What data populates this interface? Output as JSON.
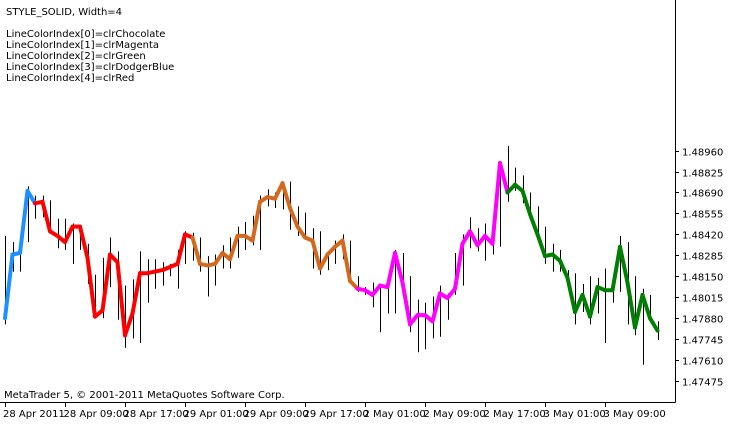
{
  "header": {
    "title": "STYLE_SOLID,  Width=4",
    "legend": [
      "LineColorIndex[0]=clrChocolate",
      "LineColorIndex[1]=clrMagenta",
      "LineColorIndex[2]=clrGreen",
      "LineColorIndex[3]=clrDodgerBlue",
      "LineColorIndex[4]=clrRed"
    ]
  },
  "footer": {
    "copyright": "MetaTrader 5, © 2001-2011 MetaQuotes Software Corp."
  },
  "colors": {
    "chocolate": "#d2691e",
    "magenta": "#ff00ff",
    "green": "#008000",
    "dodgerblue": "#1e90ff",
    "red": "#ff0000",
    "bars": "#000000",
    "background": "#ffffff"
  },
  "chart_data": {
    "type": "line",
    "title": "STYLE_SOLID,  Width=4",
    "xlabel": "",
    "ylabel": "",
    "grid": false,
    "ylim": [
      1.4734,
      1.4993
    ],
    "y_ticks": [
      "1.48960",
      "1.48825",
      "1.48690",
      "1.48555",
      "1.48420",
      "1.48285",
      "1.48150",
      "1.48015",
      "1.47880",
      "1.47745",
      "1.47610",
      "1.47475"
    ],
    "x_ticks": [
      "28 Apr 2011",
      "28 Apr 09:00",
      "28 Apr 17:00",
      "29 Apr 01:00",
      "29 Apr 09:00",
      "29 Apr 17:00",
      "2 May 01:00",
      "2 May 09:00",
      "2 May 17:00",
      "3 May 01:00",
      "3 May 09:00"
    ],
    "bars": [
      {
        "high": 1.4841,
        "low": 1.4784,
        "color": 3,
        "value": 1.4788
      },
      {
        "high": 1.4837,
        "low": 1.4818,
        "color": 3,
        "value": 1.4829
      },
      {
        "high": 1.484,
        "low": 1.4818,
        "color": 3,
        "value": 1.483
      },
      {
        "high": 1.4873,
        "low": 1.4837,
        "color": 3,
        "value": 1.487
      },
      {
        "high": 1.4867,
        "low": 1.4852,
        "color": 3,
        "value": 1.4862
      },
      {
        "high": 1.4867,
        "low": 1.4853,
        "color": 4,
        "value": 1.4863
      },
      {
        "high": 1.4864,
        "low": 1.4843,
        "color": 4,
        "value": 1.4844
      },
      {
        "high": 1.4852,
        "low": 1.4833,
        "color": 4,
        "value": 1.4841
      },
      {
        "high": 1.4852,
        "low": 1.4832,
        "color": 4,
        "value": 1.4837
      },
      {
        "high": 1.4849,
        "low": 1.4823,
        "color": 4,
        "value": 1.4847
      },
      {
        "high": 1.4846,
        "low": 1.4832,
        "color": 4,
        "value": 1.4847
      },
      {
        "high": 1.4836,
        "low": 1.481,
        "color": 4,
        "value": 1.4827
      },
      {
        "high": 1.4816,
        "low": 1.4788,
        "color": 4,
        "value": 1.4789
      },
      {
        "high": 1.4827,
        "low": 1.4788,
        "color": 4,
        "value": 1.4793
      },
      {
        "high": 1.484,
        "low": 1.4808,
        "color": 4,
        "value": 1.4829
      },
      {
        "high": 1.4831,
        "low": 1.4787,
        "color": 4,
        "value": 1.4824
      },
      {
        "high": 1.4809,
        "low": 1.4769,
        "color": 4,
        "value": 1.4777
      },
      {
        "high": 1.4813,
        "low": 1.4775,
        "color": 4,
        "value": 1.4791
      },
      {
        "high": 1.4831,
        "low": 1.4772,
        "color": 4,
        "value": 1.4817
      },
      {
        "high": 1.4826,
        "low": 1.4798,
        "color": 4,
        "value": 1.4817
      },
      {
        "high": 1.4826,
        "low": 1.4807,
        "color": 4,
        "value": 1.4818
      },
      {
        "high": 1.4824,
        "low": 1.4809,
        "color": 4,
        "value": 1.4819
      },
      {
        "high": 1.4823,
        "low": 1.4815,
        "color": 4,
        "value": 1.4821
      },
      {
        "high": 1.4832,
        "low": 1.4807,
        "color": 4,
        "value": 1.4823
      },
      {
        "high": 1.4844,
        "low": 1.4823,
        "color": 4,
        "value": 1.4842
      },
      {
        "high": 1.4843,
        "low": 1.4825,
        "color": 4,
        "value": 1.484
      },
      {
        "high": 1.484,
        "low": 1.4818,
        "color": 0,
        "value": 1.4823
      },
      {
        "high": 1.4828,
        "low": 1.4802,
        "color": 0,
        "value": 1.4822
      },
      {
        "high": 1.4829,
        "low": 1.4809,
        "color": 0,
        "value": 1.4823
      },
      {
        "high": 1.4835,
        "low": 1.482,
        "color": 0,
        "value": 1.483
      },
      {
        "high": 1.484,
        "low": 1.482,
        "color": 0,
        "value": 1.4826
      },
      {
        "high": 1.4847,
        "low": 1.4827,
        "color": 0,
        "value": 1.4841
      },
      {
        "high": 1.485,
        "low": 1.4832,
        "color": 0,
        "value": 1.4841
      },
      {
        "high": 1.4854,
        "low": 1.4835,
        "color": 0,
        "value": 1.4838
      },
      {
        "high": 1.4867,
        "low": 1.4832,
        "color": 0,
        "value": 1.4863
      },
      {
        "high": 1.4871,
        "low": 1.486,
        "color": 0,
        "value": 1.4866
      },
      {
        "high": 1.4869,
        "low": 1.4859,
        "color": 0,
        "value": 1.4865
      },
      {
        "high": 1.4876,
        "low": 1.4858,
        "color": 0,
        "value": 1.4875
      },
      {
        "high": 1.4876,
        "low": 1.4845,
        "color": 0,
        "value": 1.4859
      },
      {
        "high": 1.486,
        "low": 1.4841,
        "color": 0,
        "value": 1.4847
      },
      {
        "high": 1.4856,
        "low": 1.484,
        "color": 0,
        "value": 1.484
      },
      {
        "high": 1.4846,
        "low": 1.482,
        "color": 0,
        "value": 1.4838
      },
      {
        "high": 1.4844,
        "low": 1.4816,
        "color": 0,
        "value": 1.482
      },
      {
        "high": 1.4831,
        "low": 1.4819,
        "color": 0,
        "value": 1.4829
      },
      {
        "high": 1.4838,
        "low": 1.4823,
        "color": 0,
        "value": 1.4834
      },
      {
        "high": 1.4842,
        "low": 1.4826,
        "color": 0,
        "value": 1.4838
      },
      {
        "high": 1.4838,
        "low": 1.4811,
        "color": 0,
        "value": 1.4812
      },
      {
        "high": 1.4815,
        "low": 1.4805,
        "color": 0,
        "value": 1.4807
      },
      {
        "high": 1.4808,
        "low": 1.4803,
        "color": 1,
        "value": 1.4806
      },
      {
        "high": 1.4811,
        "low": 1.4795,
        "color": 1,
        "value": 1.4803
      },
      {
        "high": 1.4809,
        "low": 1.4779,
        "color": 1,
        "value": 1.4809
      },
      {
        "high": 1.4814,
        "low": 1.4791,
        "color": 1,
        "value": 1.4808
      },
      {
        "high": 1.4832,
        "low": 1.4791,
        "color": 1,
        "value": 1.483
      },
      {
        "high": 1.483,
        "low": 1.4808,
        "color": 1,
        "value": 1.4811
      },
      {
        "high": 1.4815,
        "low": 1.4779,
        "color": 1,
        "value": 1.4784
      },
      {
        "high": 1.48,
        "low": 1.4766,
        "color": 1,
        "value": 1.479
      },
      {
        "high": 1.4798,
        "low": 1.4768,
        "color": 1,
        "value": 1.479
      },
      {
        "high": 1.4802,
        "low": 1.4775,
        "color": 1,
        "value": 1.4786
      },
      {
        "high": 1.4809,
        "low": 1.4776,
        "color": 1,
        "value": 1.4804
      },
      {
        "high": 1.4804,
        "low": 1.4787,
        "color": 1,
        "value": 1.4801
      },
      {
        "high": 1.483,
        "low": 1.4803,
        "color": 1,
        "value": 1.4807
      },
      {
        "high": 1.4842,
        "low": 1.4809,
        "color": 1,
        "value": 1.4836
      },
      {
        "high": 1.4853,
        "low": 1.4833,
        "color": 1,
        "value": 1.4844
      },
      {
        "high": 1.4846,
        "low": 1.4831,
        "color": 1,
        "value": 1.4835
      },
      {
        "high": 1.4849,
        "low": 1.4825,
        "color": 1,
        "value": 1.4841
      },
      {
        "high": 1.4854,
        "low": 1.4829,
        "color": 1,
        "value": 1.4836
      },
      {
        "high": 1.4887,
        "low": 1.4834,
        "color": 1,
        "value": 1.4888
      },
      {
        "high": 1.4899,
        "low": 1.4863,
        "color": 1,
        "value": 1.4869
      },
      {
        "high": 1.4885,
        "low": 1.487,
        "color": 2,
        "value": 1.4874
      },
      {
        "high": 1.488,
        "low": 1.4862,
        "color": 2,
        "value": 1.487
      },
      {
        "high": 1.4869,
        "low": 1.4855,
        "color": 2,
        "value": 1.4855
      },
      {
        "high": 1.486,
        "low": 1.4838,
        "color": 2,
        "value": 1.4842
      },
      {
        "high": 1.4847,
        "low": 1.4823,
        "color": 2,
        "value": 1.4828
      },
      {
        "high": 1.4836,
        "low": 1.4818,
        "color": 2,
        "value": 1.4829
      },
      {
        "high": 1.4832,
        "low": 1.4818,
        "color": 2,
        "value": 1.4825
      },
      {
        "high": 1.4819,
        "low": 1.4809,
        "color": 2,
        "value": 1.4814
      },
      {
        "high": 1.4817,
        "low": 1.4784,
        "color": 2,
        "value": 1.4792
      },
      {
        "high": 1.481,
        "low": 1.4792,
        "color": 2,
        "value": 1.4803
      },
      {
        "high": 1.4815,
        "low": 1.4784,
        "color": 2,
        "value": 1.4789
      },
      {
        "high": 1.4814,
        "low": 1.4791,
        "color": 2,
        "value": 1.4808
      },
      {
        "high": 1.482,
        "low": 1.4772,
        "color": 2,
        "value": 1.4806
      },
      {
        "high": 1.4816,
        "low": 1.4798,
        "color": 2,
        "value": 1.4806
      },
      {
        "high": 1.4841,
        "low": 1.4805,
        "color": 2,
        "value": 1.4834
      },
      {
        "high": 1.4837,
        "low": 1.4784,
        "color": 2,
        "value": 1.4811
      },
      {
        "high": 1.4815,
        "low": 1.4777,
        "color": 2,
        "value": 1.4782
      },
      {
        "high": 1.4807,
        "low": 1.4758,
        "color": 2,
        "value": 1.4803
      },
      {
        "high": 1.4803,
        "low": 1.4786,
        "color": 2,
        "value": 1.4788
      },
      {
        "high": 1.4786,
        "low": 1.4774,
        "color": 2,
        "value": 1.478
      }
    ]
  }
}
